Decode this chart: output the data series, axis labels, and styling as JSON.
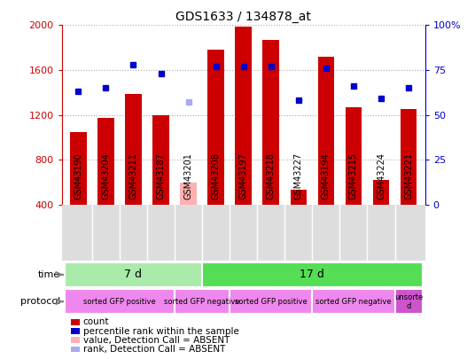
{
  "title": "GDS1633 / 134878_at",
  "samples": [
    "GSM43190",
    "GSM43204",
    "GSM43211",
    "GSM43187",
    "GSM43201",
    "GSM43208",
    "GSM43197",
    "GSM43218",
    "GSM43227",
    "GSM43194",
    "GSM43215",
    "GSM43224",
    "GSM43221"
  ],
  "bar_values": [
    1050,
    1170,
    1390,
    1200,
    600,
    1780,
    1990,
    1870,
    530,
    1720,
    1270,
    620,
    1250
  ],
  "bar_absent": [
    false,
    false,
    false,
    false,
    true,
    false,
    false,
    false,
    false,
    false,
    false,
    false,
    false
  ],
  "rank_values": [
    63,
    65,
    78,
    73,
    57,
    77,
    77,
    77,
    58,
    76,
    66,
    59,
    65
  ],
  "rank_absent": [
    false,
    false,
    false,
    false,
    true,
    false,
    false,
    false,
    false,
    false,
    false,
    false,
    false
  ],
  "ylim_left": [
    400,
    2000
  ],
  "ylim_right": [
    0,
    100
  ],
  "yticks_left": [
    400,
    800,
    1200,
    1600,
    2000
  ],
  "yticks_right": [
    0,
    25,
    50,
    75,
    100
  ],
  "bar_color": "#cc0000",
  "bar_absent_color": "#ffb0b0",
  "rank_color": "#0000cc",
  "rank_absent_color": "#aaaaee",
  "grid_color": "#aaaaaa",
  "time_groups": [
    {
      "label": "7 d",
      "start": 0,
      "end": 5,
      "color": "#aaeaaa"
    },
    {
      "label": "17 d",
      "start": 5,
      "end": 13,
      "color": "#55dd55"
    }
  ],
  "protocol_groups": [
    {
      "label": "sorted GFP positive",
      "start": 0,
      "end": 4,
      "color": "#ee88ee"
    },
    {
      "label": "sorted GFP negative",
      "start": 4,
      "end": 6,
      "color": "#ee88ee"
    },
    {
      "label": "sorted GFP positive",
      "start": 6,
      "end": 9,
      "color": "#ee88ee"
    },
    {
      "label": "sorted GFP negative",
      "start": 9,
      "end": 12,
      "color": "#ee88ee"
    },
    {
      "label": "unsorte\nd",
      "start": 12,
      "end": 13,
      "color": "#cc55cc"
    }
  ],
  "legend_items": [
    {
      "label": "count",
      "color": "#cc0000"
    },
    {
      "label": "percentile rank within the sample",
      "color": "#0000cc"
    },
    {
      "label": "value, Detection Call = ABSENT",
      "color": "#ffb0b0"
    },
    {
      "label": "rank, Detection Call = ABSENT",
      "color": "#aaaaee"
    }
  ],
  "tick_color_left": "#cc0000",
  "tick_color_right": "#0000cc",
  "xlabel_bg": "#dddddd",
  "plot_bg": "#ffffff"
}
